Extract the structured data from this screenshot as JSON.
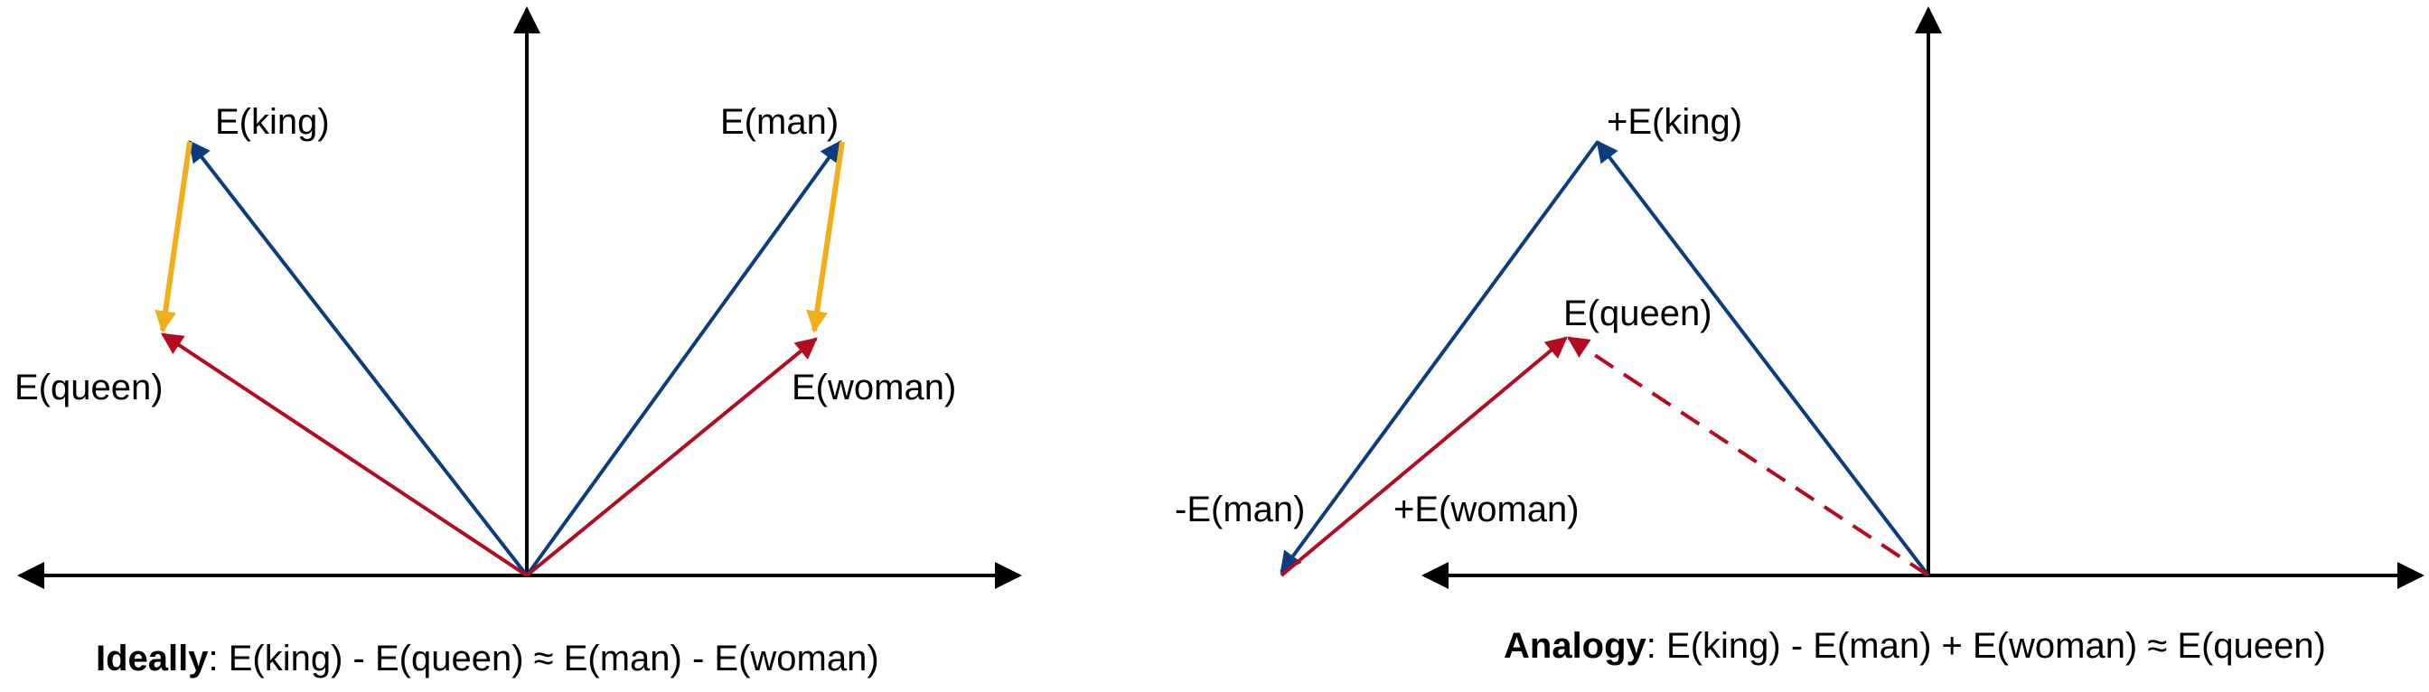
{
  "colors": {
    "axis": "#000000",
    "blue": "#0b3d7e",
    "red": "#b40b20",
    "yellow": "#f0ae1a"
  },
  "left": {
    "labels": {
      "king": "E(king)",
      "man": "E(man)",
      "queen": "E(queen)",
      "woman": "E(woman)"
    },
    "caption": {
      "bold": "Ideally",
      "rest": ": E(king) - E(queen) ≈ E(man) - E(woman)"
    }
  },
  "right": {
    "labels": {
      "king": "+E(king)",
      "queen": "E(queen)",
      "minus_man": "-E(man)",
      "woman": "+E(woman)"
    },
    "caption": {
      "bold": "Analogy",
      "rest": ": E(king) - E(man) + E(woman) ≈ E(queen)"
    }
  }
}
